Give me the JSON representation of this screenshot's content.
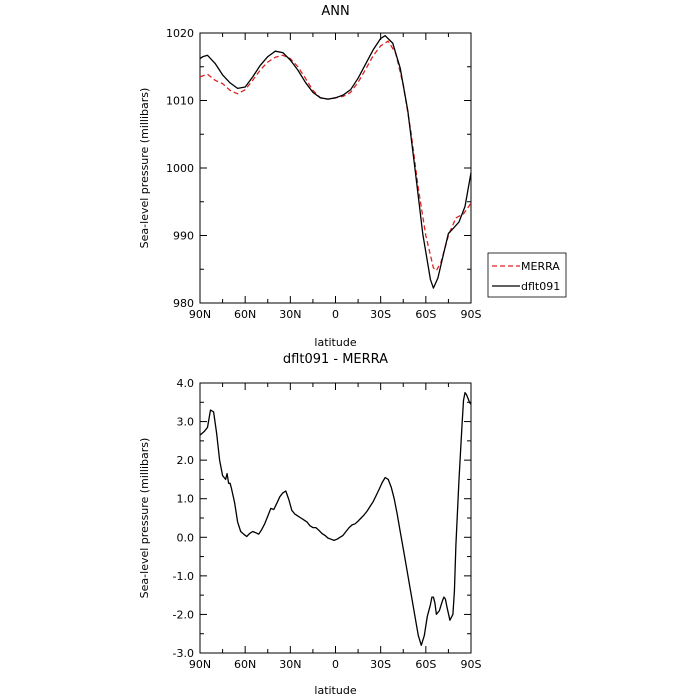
{
  "chart_data": [
    {
      "type": "line",
      "title": "ANN",
      "xlabel": "latitude",
      "ylabel": "Sea-level pressure (millibars)",
      "xlim": [
        90,
        -90
      ],
      "ylim": [
        980,
        1020
      ],
      "xticks": [
        90,
        60,
        30,
        0,
        -30,
        -60,
        -90
      ],
      "xtick_labels": [
        "90N",
        "60N",
        "30N",
        "0",
        "30S",
        "60S",
        "90S"
      ],
      "yticks": [
        980,
        990,
        1000,
        1010,
        1020
      ],
      "ytick_labels": [
        "980",
        "990",
        "1000",
        "1010",
        "1020"
      ],
      "grid": false,
      "legend_position": "right",
      "series": [
        {
          "name": "MERRA",
          "color": "#dd2222",
          "dash": "dashed",
          "x": [
            90,
            85,
            80,
            75,
            70,
            65,
            60,
            55,
            50,
            45,
            40,
            35,
            30,
            25,
            20,
            15,
            10,
            5,
            0,
            -5,
            -10,
            -15,
            -20,
            -25,
            -30,
            -35,
            -40,
            -45,
            -50,
            -55,
            -60,
            -65,
            -67,
            -70,
            -75,
            -80,
            -85,
            -90
          ],
          "y": [
            1013.5,
            1013.9,
            1013.0,
            1012.5,
            1011.5,
            1011.0,
            1011.6,
            1013.0,
            1014.5,
            1015.7,
            1016.4,
            1016.7,
            1016.2,
            1015.0,
            1013.3,
            1011.5,
            1010.4,
            1010.2,
            1010.4,
            1010.6,
            1011.2,
            1012.7,
            1014.6,
            1016.6,
            1018.1,
            1018.8,
            1017.0,
            1012.3,
            1005.5,
            997.0,
            990.0,
            985.2,
            984.8,
            986.0,
            990.0,
            992.6,
            993.2,
            994.8
          ]
        },
        {
          "name": "dflt091",
          "color": "#000000",
          "dash": "solid",
          "x": [
            90,
            88,
            85,
            80,
            75,
            70,
            65,
            60,
            55,
            50,
            45,
            40,
            35,
            30,
            25,
            20,
            15,
            10,
            5,
            0,
            -5,
            -10,
            -15,
            -20,
            -25,
            -30,
            -33,
            -38,
            -43,
            -48,
            -53,
            -58,
            -63,
            -65,
            -68,
            -72,
            -75,
            -78,
            -82,
            -86,
            -90
          ],
          "y": [
            1016.2,
            1016.5,
            1016.7,
            1015.5,
            1013.8,
            1012.6,
            1011.8,
            1012.0,
            1013.5,
            1015.2,
            1016.5,
            1017.3,
            1017.1,
            1016.0,
            1014.5,
            1012.7,
            1011.2,
            1010.4,
            1010.2,
            1010.4,
            1010.8,
            1011.6,
            1013.3,
            1015.4,
            1017.5,
            1019.2,
            1019.6,
            1018.5,
            1014.8,
            1008.5,
            999.5,
            990.2,
            983.5,
            982.2,
            983.7,
            987.5,
            990.3,
            991.0,
            992.0,
            994.3,
            999.3
          ]
        }
      ]
    },
    {
      "type": "line",
      "title": "dflt091 - MERRA",
      "xlabel": "latitude",
      "ylabel": "Sea-level pressure (millibars)",
      "xlim": [
        90,
        -90
      ],
      "ylim": [
        -3.0,
        4.0
      ],
      "xticks": [
        90,
        60,
        30,
        0,
        -30,
        -60,
        -90
      ],
      "xtick_labels": [
        "90N",
        "60N",
        "30N",
        "0",
        "30S",
        "60S",
        "90S"
      ],
      "yticks": [
        -3.0,
        -2.0,
        -1.0,
        0.0,
        1.0,
        2.0,
        3.0,
        4.0
      ],
      "ytick_labels": [
        "-3.0",
        "-2.0",
        "-1.0",
        "0.0",
        "1.0",
        "2.0",
        "3.0",
        "4.0"
      ],
      "grid": false,
      "series": [
        {
          "color": "#000000",
          "dash": "solid",
          "x": [
            90,
            87,
            85,
            83,
            81,
            79,
            77,
            75,
            73,
            72,
            71,
            70,
            69,
            67,
            65,
            63,
            61,
            59,
            57,
            55,
            53,
            51,
            49,
            47,
            45,
            43,
            41,
            39,
            37,
            35,
            33,
            31,
            29,
            27,
            25,
            23,
            21,
            19,
            17,
            15,
            13,
            11,
            9,
            7,
            5,
            3,
            1,
            -1,
            -3,
            -5,
            -7,
            -9,
            -11,
            -13,
            -15,
            -17,
            -19,
            -21,
            -23,
            -25,
            -27,
            -29,
            -31,
            -33,
            -35,
            -37,
            -39,
            -41,
            -43,
            -45,
            -47,
            -49,
            -51,
            -53,
            -55,
            -57,
            -59,
            -61,
            -63,
            -64,
            -65,
            -66,
            -67,
            -69,
            -71,
            -72,
            -73,
            -74,
            -76,
            -78,
            -79,
            -80,
            -82,
            -84,
            -85,
            -86,
            -87,
            -88,
            -89,
            -90
          ],
          "y": [
            2.65,
            2.75,
            2.85,
            3.3,
            3.25,
            2.7,
            2.0,
            1.6,
            1.5,
            1.65,
            1.4,
            1.4,
            1.25,
            0.9,
            0.4,
            0.15,
            0.08,
            0.02,
            0.1,
            0.15,
            0.12,
            0.08,
            0.2,
            0.35,
            0.55,
            0.75,
            0.72,
            0.88,
            1.05,
            1.15,
            1.2,
            0.98,
            0.7,
            0.6,
            0.55,
            0.5,
            0.45,
            0.4,
            0.3,
            0.25,
            0.25,
            0.18,
            0.1,
            0.05,
            -0.02,
            -0.05,
            -0.08,
            -0.05,
            0.0,
            0.05,
            0.15,
            0.25,
            0.32,
            0.35,
            0.42,
            0.5,
            0.58,
            0.68,
            0.8,
            0.92,
            1.08,
            1.25,
            1.42,
            1.55,
            1.5,
            1.3,
            1.0,
            0.6,
            0.15,
            -0.3,
            -0.75,
            -1.2,
            -1.65,
            -2.1,
            -2.55,
            -2.8,
            -2.55,
            -2.05,
            -1.75,
            -1.55,
            -1.55,
            -1.7,
            -2.0,
            -1.9,
            -1.65,
            -1.55,
            -1.6,
            -1.8,
            -2.15,
            -2.0,
            -1.4,
            -0.2,
            1.5,
            2.9,
            3.55,
            3.75,
            3.7,
            3.6,
            3.5,
            3.45
          ]
        }
      ]
    }
  ]
}
